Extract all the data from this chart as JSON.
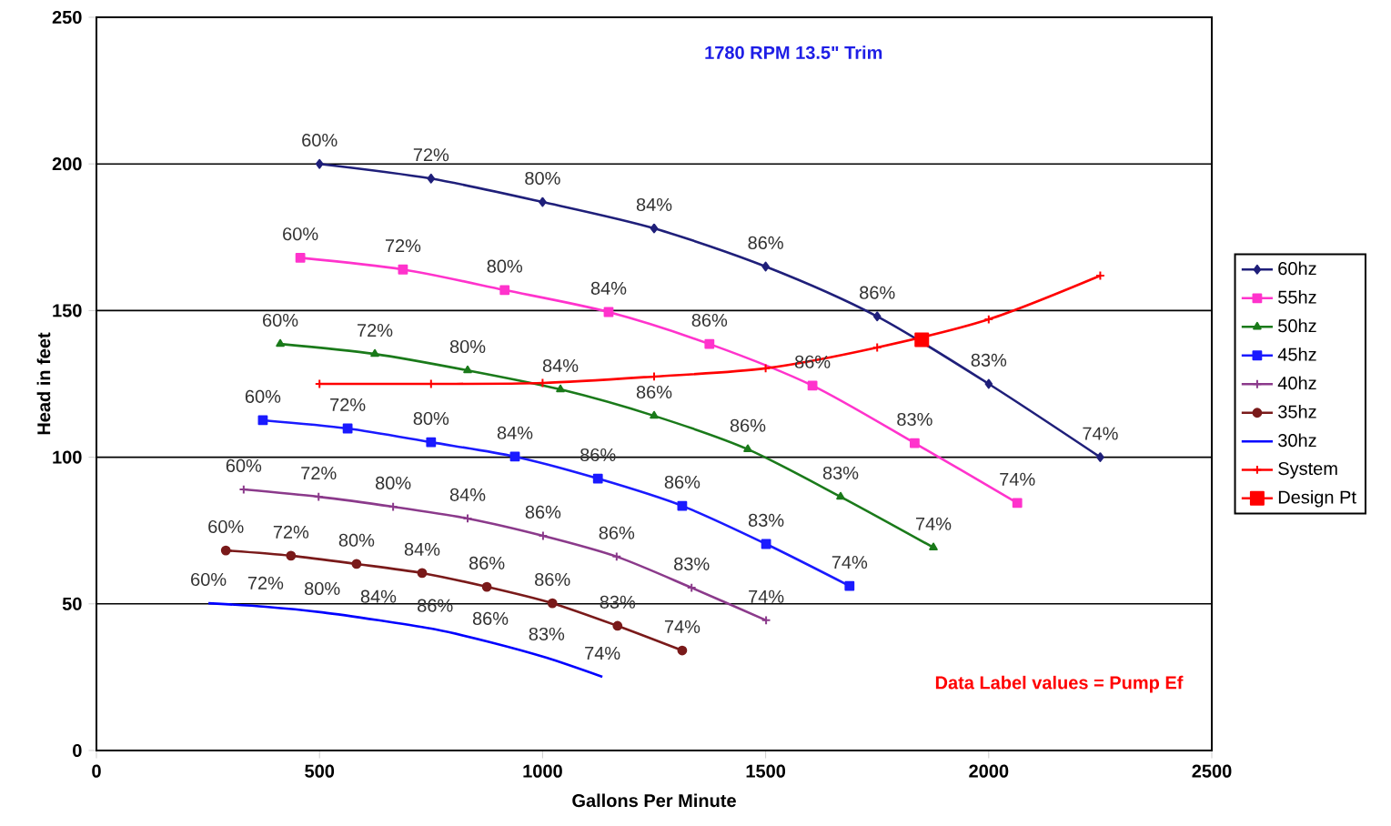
{
  "chart_data": {
    "type": "line",
    "title": "1780 RPM 13.5\" Trim",
    "xlabel": "Gallons Per Minute",
    "ylabel": "Head in feet",
    "xlim": [
      0,
      2500
    ],
    "ylim": [
      0,
      250
    ],
    "xticks": [
      0,
      500,
      1000,
      1500,
      2000,
      2500
    ],
    "yticks": [
      0,
      50,
      100,
      150,
      200,
      250
    ],
    "grid": "y",
    "legend": "right",
    "annotations": [
      "Data Label values = Pump Ef",
      {
        "text": "60%",
        "x": 500,
        "y": 200
      },
      {
        "text": "72%",
        "x": 750,
        "y": 195
      },
      {
        "text": "80%",
        "x": 1000,
        "y": 187
      },
      {
        "text": "84%",
        "x": 1250,
        "y": 178
      },
      {
        "text": "86%",
        "x": 1500,
        "y": 165
      },
      {
        "text": "86%",
        "x": 1750,
        "y": 148
      },
      {
        "text": "83%",
        "x": 2000,
        "y": 125
      },
      {
        "text": "74%",
        "x": 2250,
        "y": 100
      },
      {
        "text": "60%",
        "x": 457,
        "y": 168
      },
      {
        "text": "72%",
        "x": 687,
        "y": 164
      },
      {
        "text": "80%",
        "x": 915,
        "y": 157
      },
      {
        "text": "84%",
        "x": 1148,
        "y": 149.5
      },
      {
        "text": "86%",
        "x": 1374,
        "y": 138.6
      },
      {
        "text": "86%",
        "x": 1605,
        "y": 124.4
      },
      {
        "text": "83%",
        "x": 1834,
        "y": 104.8
      },
      {
        "text": "74%",
        "x": 2064,
        "y": 84.4
      },
      {
        "text": "60%",
        "x": 412,
        "y": 138.6
      },
      {
        "text": "72%",
        "x": 624,
        "y": 135.2
      },
      {
        "text": "80%",
        "x": 832,
        "y": 129.6
      },
      {
        "text": "84%",
        "x": 1040,
        "y": 123.1
      },
      {
        "text": "86%",
        "x": 1250,
        "y": 114.1
      },
      {
        "text": "86%",
        "x": 1460,
        "y": 102.7
      },
      {
        "text": "83%",
        "x": 1668,
        "y": 86.5
      },
      {
        "text": "74%",
        "x": 1876,
        "y": 69.2
      },
      {
        "text": "60%",
        "x": 373,
        "y": 112.6
      },
      {
        "text": "72%",
        "x": 563,
        "y": 109.8
      },
      {
        "text": "80%",
        "x": 750,
        "y": 105.1
      },
      {
        "text": "84%",
        "x": 938,
        "y": 100.2
      },
      {
        "text": "86%",
        "x": 1124,
        "y": 92.7
      },
      {
        "text": "86%",
        "x": 1313,
        "y": 83.4
      },
      {
        "text": "83%",
        "x": 1501,
        "y": 70.4
      },
      {
        "text": "74%",
        "x": 1688,
        "y": 56.1
      },
      {
        "text": "60%",
        "x": 330,
        "y": 89
      },
      {
        "text": "72%",
        "x": 498,
        "y": 86.5
      },
      {
        "text": "80%",
        "x": 665,
        "y": 83.1
      },
      {
        "text": "84%",
        "x": 832,
        "y": 79.1
      },
      {
        "text": "86%",
        "x": 1001,
        "y": 73.2
      },
      {
        "text": "86%",
        "x": 1166,
        "y": 66.1
      },
      {
        "text": "83%",
        "x": 1334,
        "y": 55.5
      },
      {
        "text": "74%",
        "x": 1501,
        "y": 44.4
      },
      {
        "text": "60%",
        "x": 290,
        "y": 68.2
      },
      {
        "text": "72%",
        "x": 436,
        "y": 66.4
      },
      {
        "text": "80%",
        "x": 583,
        "y": 63.6
      },
      {
        "text": "84%",
        "x": 730,
        "y": 60.5
      },
      {
        "text": "86%",
        "x": 875,
        "y": 55.8
      },
      {
        "text": "86%",
        "x": 1022,
        "y": 50.2
      },
      {
        "text": "83%",
        "x": 1168,
        "y": 42.5
      },
      {
        "text": "74%",
        "x": 1313,
        "y": 34.1
      },
      {
        "text": "60%",
        "x": 251,
        "y": 50.2
      },
      {
        "text": "72%",
        "x": 379,
        "y": 49
      },
      {
        "text": "80%",
        "x": 506,
        "y": 47.1
      },
      {
        "text": "84%",
        "x": 632,
        "y": 44.4
      },
      {
        "text": "86%",
        "x": 759,
        "y": 41.3
      },
      {
        "text": "86%",
        "x": 883,
        "y": 36.9
      },
      {
        "text": "83%",
        "x": 1009,
        "y": 31.6
      },
      {
        "text": "74%",
        "x": 1134,
        "y": 25.1
      }
    ],
    "series": [
      {
        "name": "60hz",
        "color": "#1f1f7a",
        "marker": "diamond",
        "x": [
          500,
          750,
          1000,
          1250,
          1500,
          1750,
          2000,
          2250
        ],
        "values": [
          200,
          195,
          187,
          178,
          165,
          148,
          125,
          100
        ]
      },
      {
        "name": "55hz",
        "color": "#ff33cc",
        "marker": "square",
        "x": [
          457,
          687,
          915,
          1148,
          1374,
          1605,
          1834,
          2064
        ],
        "values": [
          168,
          164,
          157,
          149.5,
          138.6,
          124.4,
          104.8,
          84.4
        ]
      },
      {
        "name": "50hz",
        "color": "#1a7a1a",
        "marker": "triangle",
        "x": [
          412,
          624,
          832,
          1040,
          1250,
          1460,
          1668,
          1876
        ],
        "values": [
          138.6,
          135.2,
          129.6,
          123.1,
          114.1,
          102.7,
          86.5,
          69.2
        ]
      },
      {
        "name": "45hz",
        "color": "#1a1aff",
        "marker": "square",
        "x": [
          373,
          563,
          750,
          938,
          1124,
          1313,
          1501,
          1688
        ],
        "values": [
          112.6,
          109.8,
          105.1,
          100.2,
          92.7,
          83.4,
          70.4,
          56.1
        ]
      },
      {
        "name": "40hz",
        "color": "#8b3a8b",
        "marker": "cross",
        "x": [
          330,
          498,
          665,
          832,
          1001,
          1166,
          1334,
          1501
        ],
        "values": [
          89,
          86.5,
          83.1,
          79.1,
          73.2,
          66.1,
          55.5,
          44.4
        ]
      },
      {
        "name": "35hz",
        "color": "#7a1a1a",
        "marker": "circle",
        "x": [
          290,
          436,
          583,
          730,
          875,
          1022,
          1168,
          1313
        ],
        "values": [
          68.2,
          66.4,
          63.6,
          60.5,
          55.8,
          50.2,
          42.5,
          34.1
        ]
      },
      {
        "name": "30hz",
        "color": "#0000ff",
        "marker": "none",
        "x": [
          251,
          379,
          506,
          632,
          759,
          883,
          1009,
          1134
        ],
        "values": [
          50.2,
          49,
          47.1,
          44.4,
          41.3,
          36.9,
          31.6,
          25.1
        ]
      },
      {
        "name": "System",
        "color": "#ff0000",
        "marker": "cross",
        "x": [
          500,
          750,
          1000,
          1250,
          1500,
          1750,
          2000,
          2250
        ],
        "values": [
          125,
          125,
          125.3,
          127.5,
          130.3,
          137.4,
          147,
          161.9
        ]
      },
      {
        "name": "Design Pt",
        "color": "#ff0000",
        "marker": "square",
        "x": [
          1850
        ],
        "values": [
          140
        ]
      }
    ]
  }
}
